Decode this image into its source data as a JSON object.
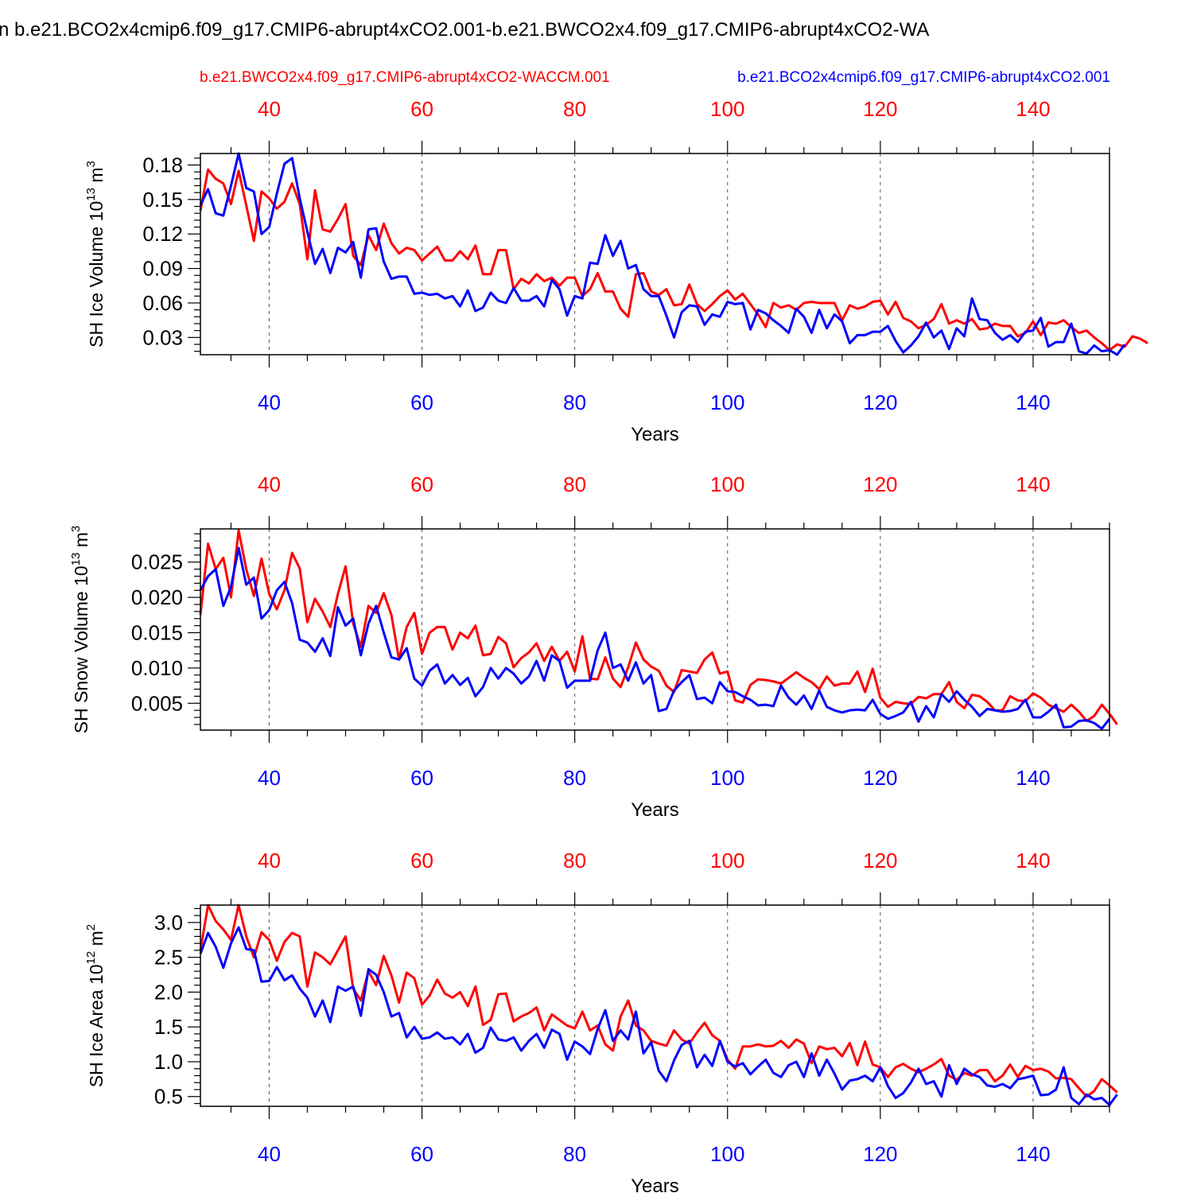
{
  "title": "n b.e21.BCO2x4cmip6.f09_g17.CMIP6-abrupt4xCO2.001-b.e21.BWCO2x4.f09_g17.CMIP6-abrupt4xCO2-WA",
  "legend": {
    "red_label": "b.e21.BWCO2x4.f09_g17.CMIP6-abrupt4xCO2-WACCM.001",
    "blue_label": "b.e21.BCO2x4cmip6.f09_g17.CMIP6-abrupt4xCO2.001"
  },
  "colors": {
    "red": "#ff0000",
    "blue": "#0000ff",
    "axis": "#000000",
    "grid": "#555555"
  },
  "chart_data": [
    {
      "type": "line",
      "ylabel": "SH Ice Volume 10",
      "ylabel_exp": "13",
      "ylabel_unit": " m",
      "ylabel_unit_exp": "3",
      "xlabel": "Years",
      "xlim": [
        31,
        150
      ],
      "ylim": [
        0.015,
        0.19
      ],
      "yticks": [
        0.03,
        0.06,
        0.09,
        0.12,
        0.15,
        0.18
      ],
      "ytick_labels": [
        "0.03",
        "0.06",
        "0.09",
        "0.12",
        "0.15",
        "0.18"
      ],
      "yminor": 0.006,
      "xticks": [
        40,
        60,
        80,
        100,
        120,
        140
      ],
      "xtick_labels": [
        "40",
        "60",
        "80",
        "100",
        "120",
        "140"
      ],
      "x_start": 31,
      "series": [
        {
          "name": "b.e21.BWCO2x4.f09_g17.CMIP6-abrupt4xCO2-WACCM.001",
          "color": "#ff0000",
          "values": [
            0.14,
            0.176,
            0.168,
            0.164,
            0.146,
            0.175,
            0.145,
            0.114,
            0.157,
            0.151,
            0.142,
            0.148,
            0.164,
            0.146,
            0.098,
            0.158,
            0.124,
            0.122,
            0.133,
            0.146,
            0.101,
            0.093,
            0.119,
            0.106,
            0.129,
            0.112,
            0.103,
            0.108,
            0.106,
            0.097,
            0.103,
            0.109,
            0.097,
            0.097,
            0.105,
            0.098,
            0.11,
            0.085,
            0.085,
            0.106,
            0.106,
            0.072,
            0.081,
            0.077,
            0.085,
            0.079,
            0.082,
            0.075,
            0.082,
            0.082,
            0.066,
            0.072,
            0.086,
            0.07,
            0.07,
            0.055,
            0.048,
            0.085,
            0.086,
            0.07,
            0.067,
            0.072,
            0.058,
            0.059,
            0.076,
            0.059,
            0.053,
            0.059,
            0.066,
            0.071,
            0.063,
            0.068,
            0.059,
            0.05,
            0.039,
            0.06,
            0.056,
            0.058,
            0.054,
            0.06,
            0.061,
            0.06,
            0.06,
            0.06,
            0.045,
            0.058,
            0.055,
            0.057,
            0.061,
            0.062,
            0.05,
            0.061,
            0.047,
            0.044,
            0.038,
            0.041,
            0.046,
            0.059,
            0.042,
            0.045,
            0.042,
            0.046,
            0.037,
            0.038,
            0.042,
            0.04,
            0.04,
            0.031,
            0.034,
            0.044,
            0.032,
            0.043,
            0.042,
            0.045,
            0.039,
            0.034,
            0.036,
            0.03,
            0.025,
            0.019,
            0.024,
            0.022,
            0.031,
            0.029,
            0.025
          ]
        },
        {
          "name": "b.e21.BCO2x4cmip6.f09_g17.CMIP6-abrupt4xCO2.001",
          "color": "#0000ff",
          "values": [
            0.145,
            0.159,
            0.138,
            0.136,
            0.162,
            0.19,
            0.16,
            0.157,
            0.12,
            0.126,
            0.155,
            0.181,
            0.186,
            0.151,
            0.122,
            0.094,
            0.107,
            0.086,
            0.108,
            0.104,
            0.113,
            0.082,
            0.124,
            0.125,
            0.096,
            0.081,
            0.083,
            0.083,
            0.068,
            0.069,
            0.067,
            0.068,
            0.064,
            0.066,
            0.057,
            0.071,
            0.053,
            0.056,
            0.069,
            0.062,
            0.06,
            0.073,
            0.062,
            0.062,
            0.066,
            0.057,
            0.08,
            0.072,
            0.049,
            0.066,
            0.064,
            0.095,
            0.094,
            0.119,
            0.101,
            0.114,
            0.09,
            0.093,
            0.072,
            0.066,
            0.066,
            0.049,
            0.03,
            0.052,
            0.058,
            0.057,
            0.041,
            0.05,
            0.048,
            0.061,
            0.059,
            0.06,
            0.037,
            0.054,
            0.051,
            0.045,
            0.04,
            0.034,
            0.055,
            0.048,
            0.034,
            0.054,
            0.038,
            0.05,
            0.044,
            0.025,
            0.032,
            0.032,
            0.035,
            0.035,
            0.04,
            0.027,
            0.017,
            0.023,
            0.031,
            0.043,
            0.03,
            0.036,
            0.02,
            0.038,
            0.031,
            0.064,
            0.046,
            0.045,
            0.034,
            0.028,
            0.032,
            0.026,
            0.035,
            0.036,
            0.047,
            0.022,
            0.026,
            0.026,
            0.042,
            0.018,
            0.016,
            0.023,
            0.018,
            0.019,
            0.015,
            0.024
          ]
        }
      ]
    },
    {
      "type": "line",
      "ylabel": "SH Snow Volume 10",
      "ylabel_exp": "13",
      "ylabel_unit": " m",
      "ylabel_unit_exp": "3",
      "xlabel": "Years",
      "xlim": [
        31,
        150
      ],
      "ylim": [
        0.0012,
        0.0297
      ],
      "yticks": [
        0.005,
        0.01,
        0.015,
        0.02,
        0.025
      ],
      "ytick_labels": [
        "0.005",
        "0.010",
        "0.015",
        "0.020",
        "0.025"
      ],
      "yminor": 0.001,
      "xticks": [
        40,
        60,
        80,
        100,
        120,
        140
      ],
      "xtick_labels": [
        "40",
        "60",
        "80",
        "100",
        "120",
        "140"
      ],
      "x_start": 31,
      "series": [
        {
          "name": "b.e21.BWCO2x4.f09_g17.CMIP6-abrupt4xCO2-WACCM.001",
          "color": "#ff0000",
          "values": [
            0.0175,
            0.0276,
            0.024,
            0.0256,
            0.02,
            0.0295,
            0.024,
            0.0202,
            0.0255,
            0.0205,
            0.0183,
            0.021,
            0.0263,
            0.0241,
            0.0165,
            0.0198,
            0.018,
            0.0158,
            0.0205,
            0.0244,
            0.0163,
            0.013,
            0.0188,
            0.0178,
            0.0206,
            0.0175,
            0.0112,
            0.0158,
            0.0178,
            0.012,
            0.015,
            0.0158,
            0.0158,
            0.0126,
            0.015,
            0.0142,
            0.016,
            0.0118,
            0.012,
            0.0144,
            0.0135,
            0.0101,
            0.0114,
            0.0122,
            0.0135,
            0.011,
            0.013,
            0.011,
            0.0123,
            0.0095,
            0.0145,
            0.0085,
            0.0084,
            0.0115,
            0.0085,
            0.0073,
            0.0101,
            0.0136,
            0.0112,
            0.0102,
            0.0096,
            0.0075,
            0.0066,
            0.0097,
            0.0095,
            0.0093,
            0.0112,
            0.0122,
            0.0092,
            0.0095,
            0.0054,
            0.0051,
            0.0076,
            0.0084,
            0.0083,
            0.0081,
            0.0078,
            0.0086,
            0.0094,
            0.0086,
            0.008,
            0.007,
            0.0088,
            0.0075,
            0.0078,
            0.0078,
            0.0095,
            0.0066,
            0.0099,
            0.0058,
            0.0045,
            0.0052,
            0.005,
            0.0049,
            0.0059,
            0.0057,
            0.0063,
            0.0063,
            0.008,
            0.0052,
            0.0043,
            0.0062,
            0.006,
            0.0052,
            0.004,
            0.004,
            0.006,
            0.0054,
            0.0053,
            0.0064,
            0.0058,
            0.0048,
            0.0043,
            0.0038,
            0.0048,
            0.0038,
            0.0025,
            0.0032,
            0.0048,
            0.0035,
            0.002
          ]
        },
        {
          "name": "b.e21.BCO2x4cmip6.f09_g17.CMIP6-abrupt4xCO2.001",
          "color": "#0000ff",
          "values": [
            0.021,
            0.023,
            0.024,
            0.0188,
            0.0215,
            0.027,
            0.0218,
            0.0228,
            0.017,
            0.0182,
            0.021,
            0.0222,
            0.0192,
            0.014,
            0.0136,
            0.0123,
            0.0142,
            0.0117,
            0.0186,
            0.016,
            0.017,
            0.0118,
            0.0163,
            0.0188,
            0.015,
            0.0115,
            0.0112,
            0.0128,
            0.0085,
            0.0075,
            0.0096,
            0.0105,
            0.0078,
            0.009,
            0.0076,
            0.0086,
            0.006,
            0.0073,
            0.01,
            0.0085,
            0.01,
            0.0092,
            0.0078,
            0.0088,
            0.011,
            0.0082,
            0.0118,
            0.011,
            0.0072,
            0.0082,
            0.0082,
            0.0082,
            0.0125,
            0.015,
            0.01,
            0.0105,
            0.0082,
            0.0108,
            0.0078,
            0.009,
            0.0039,
            0.0042,
            0.0068,
            0.008,
            0.009,
            0.0056,
            0.0058,
            0.005,
            0.008,
            0.0067,
            0.0066,
            0.006,
            0.0055,
            0.0047,
            0.0048,
            0.0046,
            0.0075,
            0.0058,
            0.0048,
            0.0061,
            0.0042,
            0.0068,
            0.0045,
            0.004,
            0.0037,
            0.004,
            0.0041,
            0.004,
            0.0055,
            0.0035,
            0.0028,
            0.0032,
            0.0037,
            0.0052,
            0.0024,
            0.0046,
            0.003,
            0.0063,
            0.0052,
            0.0067,
            0.0055,
            0.0045,
            0.0032,
            0.0042,
            0.004,
            0.0038,
            0.0039,
            0.0042,
            0.0055,
            0.003,
            0.003,
            0.0038,
            0.0048,
            0.0016,
            0.0017,
            0.0025,
            0.0026,
            0.0022,
            0.0014,
            0.0028
          ]
        }
      ]
    },
    {
      "type": "line",
      "ylabel": "SH Ice Area 10",
      "ylabel_exp": "12",
      "ylabel_unit": " m",
      "ylabel_unit_exp": "2",
      "xlabel": "Years",
      "xlim": [
        31,
        150
      ],
      "ylim": [
        0.36,
        3.25
      ],
      "yticks": [
        0.5,
        1.0,
        1.5,
        2.0,
        2.5,
        3.0
      ],
      "ytick_labels": [
        "0.5",
        "1.0",
        "1.5",
        "2.0",
        "2.5",
        "3.0"
      ],
      "yminor": 0.1,
      "xticks": [
        40,
        60,
        80,
        100,
        120,
        140
      ],
      "xtick_labels": [
        "40",
        "60",
        "80",
        "100",
        "120",
        "140"
      ],
      "x_start": 31,
      "series": [
        {
          "name": "b.e21.BWCO2x4.f09_g17.CMIP6-abrupt4xCO2-WACCM.001",
          "color": "#ff0000",
          "values": [
            2.6,
            3.25,
            3.02,
            2.9,
            2.75,
            3.25,
            2.8,
            2.5,
            2.86,
            2.75,
            2.45,
            2.72,
            2.85,
            2.8,
            2.08,
            2.57,
            2.5,
            2.4,
            2.6,
            2.8,
            2.05,
            1.88,
            2.3,
            2.1,
            2.52,
            2.24,
            1.85,
            2.28,
            2.2,
            1.82,
            1.95,
            2.18,
            1.98,
            1.92,
            2.0,
            1.8,
            2.08,
            1.53,
            1.6,
            1.97,
            1.98,
            1.58,
            1.65,
            1.7,
            1.78,
            1.45,
            1.68,
            1.6,
            1.52,
            1.48,
            1.72,
            1.45,
            1.52,
            1.25,
            1.16,
            1.65,
            1.88,
            1.52,
            1.45,
            1.3,
            1.26,
            1.23,
            1.45,
            1.32,
            1.26,
            1.42,
            1.56,
            1.38,
            1.3,
            1.03,
            0.9,
            1.22,
            1.22,
            1.25,
            1.22,
            1.23,
            1.3,
            1.2,
            1.32,
            1.26,
            0.98,
            1.22,
            1.18,
            1.2,
            1.08,
            1.27,
            0.95,
            1.29,
            0.96,
            0.92,
            0.78,
            0.92,
            0.97,
            0.9,
            0.85,
            0.9,
            0.96,
            1.04,
            0.8,
            0.74,
            0.84,
            0.8,
            0.88,
            0.88,
            0.72,
            0.8,
            0.96,
            0.78,
            0.94,
            0.88,
            0.9,
            0.86,
            0.76,
            0.77,
            0.75,
            0.62,
            0.5,
            0.58,
            0.75,
            0.66,
            0.56
          ]
        },
        {
          "name": "b.e21.BCO2x4cmip6.f09_g17.CMIP6-abrupt4xCO2.001",
          "color": "#0000ff",
          "values": [
            2.55,
            2.85,
            2.65,
            2.35,
            2.7,
            2.93,
            2.62,
            2.6,
            2.15,
            2.16,
            2.36,
            2.17,
            2.24,
            2.05,
            1.92,
            1.65,
            1.88,
            1.57,
            2.08,
            2.02,
            2.08,
            1.66,
            2.33,
            2.25,
            2.0,
            1.65,
            1.7,
            1.35,
            1.5,
            1.33,
            1.35,
            1.42,
            1.33,
            1.35,
            1.25,
            1.4,
            1.13,
            1.2,
            1.49,
            1.32,
            1.3,
            1.35,
            1.16,
            1.3,
            1.4,
            1.2,
            1.46,
            1.4,
            1.03,
            1.29,
            1.22,
            1.11,
            1.47,
            1.74,
            1.3,
            1.45,
            1.32,
            1.72,
            1.12,
            1.28,
            0.87,
            0.72,
            1.02,
            1.24,
            1.3,
            0.92,
            1.1,
            0.94,
            1.3,
            1.0,
            0.93,
            0.98,
            0.82,
            0.93,
            1.03,
            0.84,
            0.78,
            0.95,
            1.0,
            0.78,
            1.12,
            0.8,
            1.03,
            0.83,
            0.6,
            0.73,
            0.75,
            0.8,
            0.72,
            0.92,
            0.65,
            0.48,
            0.55,
            0.7,
            0.9,
            0.68,
            0.72,
            0.5,
            0.95,
            0.68,
            0.9,
            0.82,
            0.78,
            0.66,
            0.64,
            0.68,
            0.62,
            0.75,
            0.77,
            0.8,
            0.52,
            0.53,
            0.6,
            0.92,
            0.48,
            0.39,
            0.53,
            0.46,
            0.48,
            0.38,
            0.53
          ]
        }
      ]
    }
  ]
}
